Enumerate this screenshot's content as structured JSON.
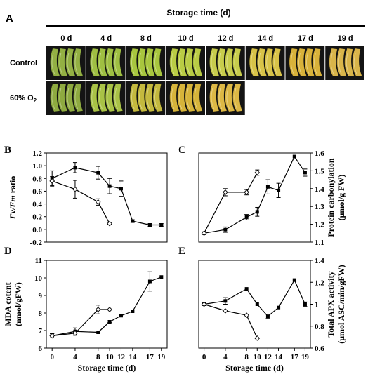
{
  "panel_a": {
    "letter": "A",
    "title": "Storage time (d)",
    "columns": [
      "0 d",
      "4 d",
      "8 d",
      "10 d",
      "12 d",
      "14 d",
      "17 d",
      "19 d"
    ],
    "rows": [
      {
        "label": "Control",
        "colors": [
          "#93b043",
          "#9fbf42",
          "#a8c63e",
          "#b9cc44",
          "#c8cd4c",
          "#d8c348",
          "#d8b23a",
          "#d9b54a"
        ]
      },
      {
        "label": "60% O",
        "label_sub": "2",
        "colors": [
          "#8eaa40",
          "#a9c246",
          "#c4b93e",
          "#d6b43a",
          "#ddb845"
        ]
      }
    ]
  },
  "chart_data": [
    {
      "type": "line",
      "panel": "B",
      "ylabel_a": "Fv/Fm",
      "ylabel_b": " ratio",
      "xlabel": "",
      "xlim": [
        -1,
        20
      ],
      "ylim": [
        -0.2,
        1.2
      ],
      "yticks": [
        -0.2,
        0.0,
        0.2,
        0.4,
        0.6,
        0.8,
        1.0,
        1.2
      ],
      "ytick_labels": [
        "-0.2",
        "0.0",
        "0.2",
        "0.4",
        "0.6",
        "0.8",
        "1.0",
        "1.2"
      ],
      "axis_side": "left",
      "series": [
        {
          "marker": "filled",
          "x": [
            0,
            4,
            8,
            10,
            12,
            14,
            17,
            19
          ],
          "y": [
            0.8,
            0.97,
            0.89,
            0.68,
            0.64,
            0.13,
            0.07,
            0.07
          ],
          "err": [
            0.12,
            0.08,
            0.1,
            0.12,
            0.12,
            0.02,
            0.02,
            0.02
          ]
        },
        {
          "marker": "open",
          "x": [
            0,
            4,
            8,
            10
          ],
          "y": [
            0.76,
            0.63,
            0.43,
            0.09
          ],
          "err": [
            0.07,
            0.14,
            0.05,
            0.01
          ]
        }
      ]
    },
    {
      "type": "line",
      "panel": "C",
      "ylabel_a": "Protein carbonylation",
      "ylabel_b": "(μmol/g FW)",
      "xlabel": "",
      "xlim": [
        -1,
        20
      ],
      "ylim": [
        1.1,
        1.6
      ],
      "yticks": [
        1.1,
        1.2,
        1.3,
        1.4,
        1.5,
        1.6
      ],
      "ytick_labels": [
        "1.1",
        "1.2",
        "1.3",
        "1.4",
        "1.5",
        "1.6"
      ],
      "axis_side": "right",
      "series": [
        {
          "marker": "filled",
          "x": [
            0,
            4,
            8,
            10,
            12,
            14,
            17,
            19
          ],
          "y": [
            1.15,
            1.17,
            1.24,
            1.27,
            1.41,
            1.39,
            1.58,
            1.49
          ],
          "err": [
            0.0,
            0.015,
            0.015,
            0.025,
            0.04,
            0.04,
            0.0,
            0.02
          ]
        },
        {
          "marker": "open",
          "x": [
            0,
            4,
            8,
            10
          ],
          "y": [
            1.15,
            1.38,
            1.38,
            1.49
          ],
          "err": [
            0.0,
            0.02,
            0.015,
            0.015
          ]
        }
      ]
    },
    {
      "type": "line",
      "panel": "D",
      "ylabel_a": "MDA cotent",
      "ylabel_b": "(nmol/gFW)",
      "xlabel": "Storage time (d)",
      "xlim": [
        -1,
        20
      ],
      "ylim": [
        6,
        11
      ],
      "yticks": [
        6,
        7,
        8,
        9,
        10,
        11
      ],
      "ytick_labels": [
        "6",
        "7",
        "8",
        "9",
        "10",
        "11"
      ],
      "axis_side": "left",
      "xticks": [
        0,
        4,
        8,
        10,
        12,
        14,
        17,
        19
      ],
      "xtick_labels": [
        "0",
        "4",
        "8",
        "10",
        "12",
        "14",
        "17",
        "19"
      ],
      "series": [
        {
          "marker": "filled",
          "x": [
            0,
            4,
            8,
            10,
            12,
            14,
            17,
            19
          ],
          "y": [
            6.7,
            6.95,
            6.9,
            7.5,
            7.85,
            8.1,
            9.8,
            10.05
          ],
          "err": [
            0.12,
            0.2,
            0.0,
            0.05,
            0.0,
            0.0,
            0.55,
            0.0
          ]
        },
        {
          "marker": "open",
          "x": [
            0,
            4,
            8,
            10
          ],
          "y": [
            6.7,
            6.85,
            8.2,
            8.2
          ],
          "err": [
            0.12,
            0.12,
            0.25,
            0.0
          ]
        }
      ]
    },
    {
      "type": "line",
      "panel": "E",
      "ylabel_a": "Total APX activity",
      "ylabel_b": "(μmol ASC/min/gFW)",
      "xlabel": "Storage time (d)",
      "xlim": [
        -1,
        20
      ],
      "ylim": [
        0.6,
        1.4
      ],
      "yticks": [
        0.6,
        0.8,
        1.0,
        1.2,
        1.4
      ],
      "ytick_labels": [
        "0.6",
        "0.8",
        "1",
        "1.2",
        "1.4"
      ],
      "axis_side": "right",
      "xticks": [
        0,
        4,
        8,
        10,
        12,
        14,
        17,
        19
      ],
      "xtick_labels": [
        "0",
        "4",
        "8",
        "10",
        "12",
        "14",
        "17",
        "19"
      ],
      "series": [
        {
          "marker": "filled",
          "x": [
            0,
            4,
            8,
            10,
            12,
            14,
            17,
            19
          ],
          "y": [
            1.0,
            1.03,
            1.14,
            1.0,
            0.89,
            0.97,
            1.22,
            1.0
          ],
          "err": [
            0.0,
            0.03,
            0.0,
            0.0,
            0.02,
            0.0,
            0.0,
            0.02
          ]
        },
        {
          "marker": "open",
          "x": [
            0,
            4,
            8,
            10
          ],
          "y": [
            1.0,
            0.94,
            0.9,
            0.69
          ],
          "err": [
            0.0,
            0.0,
            0.0,
            0.0
          ]
        }
      ]
    }
  ]
}
